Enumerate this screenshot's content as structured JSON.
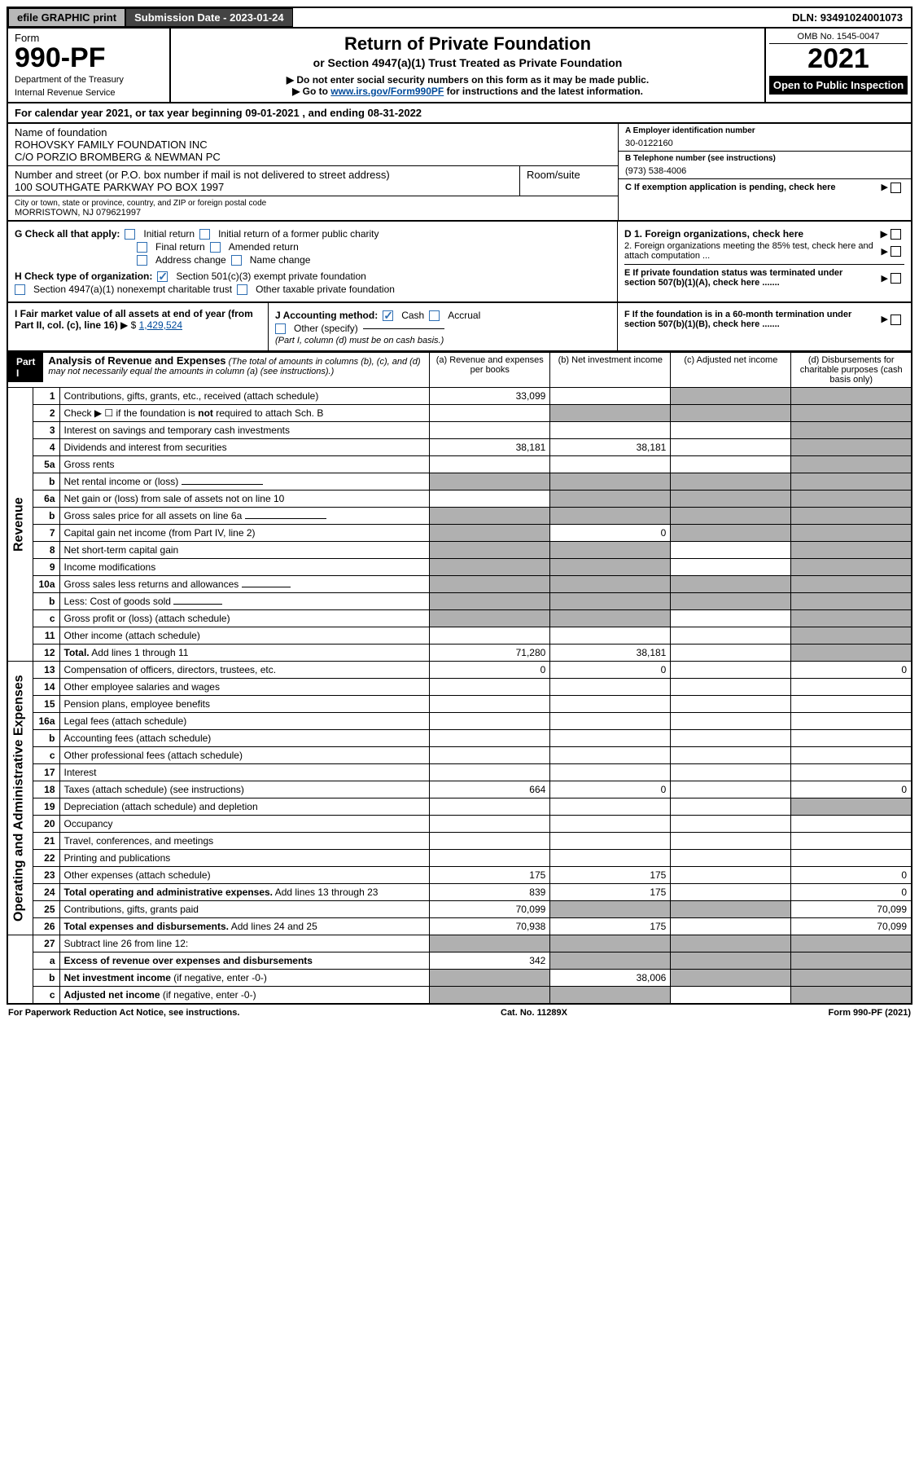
{
  "topbar": {
    "efile": "efile GRAPHIC print",
    "submission_label": "Submission Date - 2023-01-24",
    "dln": "DLN: 93491024001073"
  },
  "header": {
    "form_label": "Form",
    "form_number": "990-PF",
    "dept1": "Department of the Treasury",
    "dept2": "Internal Revenue Service",
    "title": "Return of Private Foundation",
    "subtitle": "or Section 4947(a)(1) Trust Treated as Private Foundation",
    "instr1": "▶ Do not enter social security numbers on this form as it may be made public.",
    "instr2_pre": "▶ Go to ",
    "instr2_link": "www.irs.gov/Form990PF",
    "instr2_post": " for instructions and the latest information.",
    "omb": "OMB No. 1545-0047",
    "year": "2021",
    "open": "Open to Public Inspection"
  },
  "cal_year": {
    "text_pre": "For calendar year 2021, or tax year beginning ",
    "begin": "09-01-2021",
    "text_mid": " , and ending ",
    "end": "08-31-2022"
  },
  "ident": {
    "name_lbl": "Name of foundation",
    "name1": "ROHOVSKY FAMILY FOUNDATION INC",
    "name2": "C/O PORZIO BROMBERG & NEWMAN PC",
    "addr_lbl": "Number and street (or P.O. box number if mail is not delivered to street address)",
    "addr": "100 SOUTHGATE PARKWAY PO BOX 1997",
    "room_lbl": "Room/suite",
    "city_lbl": "City or town, state or province, country, and ZIP or foreign postal code",
    "city": "MORRISTOWN, NJ 079621997",
    "ein_lbl": "A Employer identification number",
    "ein": "30-0122160",
    "phone_lbl": "B Telephone number (see instructions)",
    "phone": "(973) 538-4006",
    "c_lbl": "C If exemption application is pending, check here"
  },
  "checks": {
    "g_lbl": "G Check all that apply:",
    "g1": "Initial return",
    "g2": "Initial return of a former public charity",
    "g3": "Final return",
    "g4": "Amended return",
    "g5": "Address change",
    "g6": "Name change",
    "h_lbl": "H Check type of organization:",
    "h1": "Section 501(c)(3) exempt private foundation",
    "h2": "Section 4947(a)(1) nonexempt charitable trust",
    "h3": "Other taxable private foundation",
    "d1": "D 1. Foreign organizations, check here",
    "d2": "2. Foreign organizations meeting the 85% test, check here and attach computation ...",
    "e": "E If private foundation status was terminated under section 507(b)(1)(A), check here .......",
    "f": "F If the foundation is in a 60-month termination under section 507(b)(1)(B), check here ......."
  },
  "mid": {
    "i_lbl": "I Fair market value of all assets at end of year (from Part II, col. (c), line 16)",
    "i_val": "1,429,524",
    "j_lbl": "J Accounting method:",
    "j1": "Cash",
    "j2": "Accrual",
    "j3": "Other (specify)",
    "j_note": "(Part I, column (d) must be on cash basis.)"
  },
  "part1": {
    "label": "Part I",
    "title": "Analysis of Revenue and Expenses",
    "note": "(The total of amounts in columns (b), (c), and (d) may not necessarily equal the amounts in column (a) (see instructions).)",
    "col_a": "(a) Revenue and expenses per books",
    "col_b": "(b) Net investment income",
    "col_c": "(c) Adjusted net income",
    "col_d": "(d) Disbursements for charitable purposes (cash basis only)"
  },
  "sections": {
    "revenue": "Revenue",
    "expenses": "Operating and Administrative Expenses"
  },
  "rows": [
    {
      "n": "1",
      "d": "shade",
      "a": "33,099",
      "b": "",
      "c": "shade"
    },
    {
      "n": "2",
      "d": "shade",
      "a": "",
      "b": "shade",
      "c": "shade",
      "nodots": true
    },
    {
      "n": "3",
      "d": "shade",
      "a": "",
      "b": "",
      "c": ""
    },
    {
      "n": "4",
      "d": "shade",
      "a": "38,181",
      "b": "38,181",
      "c": ""
    },
    {
      "n": "5a",
      "d": "shade",
      "a": "",
      "b": "",
      "c": ""
    },
    {
      "n": "b",
      "d": "shade",
      "a": "shade",
      "b": "shade",
      "c": "shade",
      "inline": true
    },
    {
      "n": "6a",
      "d": "shade",
      "a": "",
      "b": "shade",
      "c": "shade"
    },
    {
      "n": "b",
      "d": "shade",
      "a": "shade",
      "b": "shade",
      "c": "shade",
      "inline": true
    },
    {
      "n": "7",
      "d": "shade",
      "a": "shade",
      "b": "0",
      "c": "shade"
    },
    {
      "n": "8",
      "d": "shade",
      "a": "shade",
      "b": "shade",
      "c": ""
    },
    {
      "n": "9",
      "d": "shade",
      "a": "shade",
      "b": "shade",
      "c": ""
    },
    {
      "n": "10a",
      "d": "shade",
      "a": "shade",
      "b": "shade",
      "c": "shade",
      "inline": true
    },
    {
      "n": "b",
      "d": "shade",
      "a": "shade",
      "b": "shade",
      "c": "shade",
      "inline": true
    },
    {
      "n": "c",
      "d": "shade",
      "a": "shade",
      "b": "shade",
      "c": ""
    },
    {
      "n": "11",
      "d": "shade",
      "a": "",
      "b": "",
      "c": ""
    },
    {
      "n": "12",
      "d": "shade",
      "a": "71,280",
      "b": "38,181",
      "c": "",
      "bold": true
    }
  ],
  "exp_rows": [
    {
      "n": "13",
      "d": "0",
      "a": "0",
      "b": "0",
      "c": ""
    },
    {
      "n": "14",
      "d": "",
      "a": "",
      "b": "",
      "c": ""
    },
    {
      "n": "15",
      "d": "",
      "a": "",
      "b": "",
      "c": ""
    },
    {
      "n": "16a",
      "d": "",
      "a": "",
      "b": "",
      "c": ""
    },
    {
      "n": "b",
      "d": "",
      "a": "",
      "b": "",
      "c": ""
    },
    {
      "n": "c",
      "d": "",
      "a": "",
      "b": "",
      "c": ""
    },
    {
      "n": "17",
      "d": "",
      "a": "",
      "b": "",
      "c": ""
    },
    {
      "n": "18",
      "d": "0",
      "a": "664",
      "b": "0",
      "c": ""
    },
    {
      "n": "19",
      "d": "shade",
      "a": "",
      "b": "",
      "c": ""
    },
    {
      "n": "20",
      "d": "",
      "a": "",
      "b": "",
      "c": ""
    },
    {
      "n": "21",
      "d": "",
      "a": "",
      "b": "",
      "c": ""
    },
    {
      "n": "22",
      "d": "",
      "a": "",
      "b": "",
      "c": ""
    },
    {
      "n": "23",
      "d": "0",
      "a": "175",
      "b": "175",
      "c": ""
    },
    {
      "n": "24",
      "d": "0",
      "a": "839",
      "b": "175",
      "c": "",
      "bold": true
    },
    {
      "n": "25",
      "d": "70,099",
      "a": "70,099",
      "b": "shade",
      "c": "shade"
    },
    {
      "n": "26",
      "d": "70,099",
      "a": "70,938",
      "b": "175",
      "c": "",
      "bold": true
    }
  ],
  "bottom_rows": [
    {
      "n": "27",
      "d": "shade",
      "a": "shade",
      "b": "shade",
      "c": "shade"
    },
    {
      "n": "a",
      "d": "shade",
      "a": "342",
      "b": "shade",
      "c": "shade",
      "bold": true
    },
    {
      "n": "b",
      "d": "shade",
      "a": "shade",
      "b": "38,006",
      "c": "shade",
      "bold": true
    },
    {
      "n": "c",
      "d": "shade",
      "a": "shade",
      "b": "shade",
      "c": "",
      "bold": true
    }
  ],
  "footer": {
    "left": "For Paperwork Reduction Act Notice, see instructions.",
    "center": "Cat. No. 11289X",
    "right": "Form 990-PF (2021)"
  },
  "colors": {
    "link": "#004b9b",
    "checkblue": "#2f6fb3",
    "shade": "#b0b0b0",
    "topbtn": "#b7b7b7",
    "topdark": "#444444"
  }
}
